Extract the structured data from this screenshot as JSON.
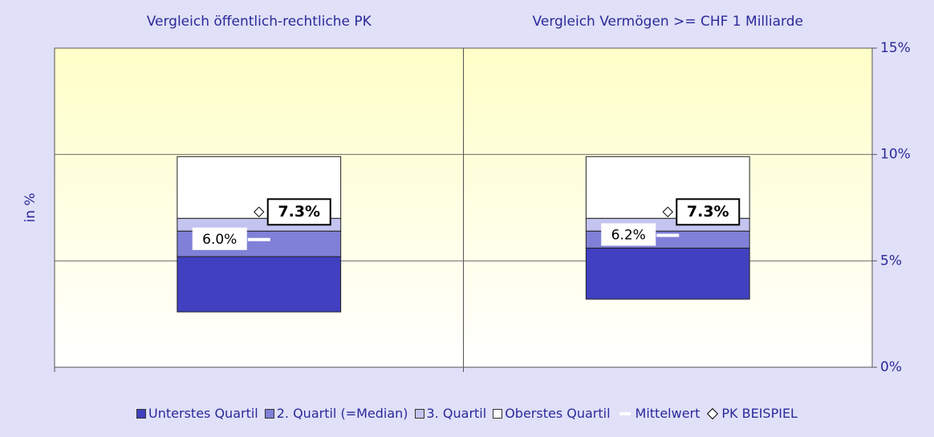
{
  "chart_data": {
    "type": "floating-stacked-bar",
    "categories": [
      "Vergleich öffentlich-rechtliche PK",
      "Vergleich Vermögen >= CHF 1 Milliarde"
    ],
    "ylabel": "in %",
    "ylim": [
      0,
      15
    ],
    "yticks": [
      {
        "value": 0,
        "label": "0%"
      },
      {
        "value": 5,
        "label": "5%"
      },
      {
        "value": 10,
        "label": "10%"
      },
      {
        "value": 15,
        "label": "15%"
      }
    ],
    "grid": true,
    "base": [
      2.6,
      3.2
    ],
    "series": [
      {
        "name": "Unterstes Quartil",
        "color": "#4040c0",
        "values": [
          2.6,
          2.4
        ]
      },
      {
        "name": "2. Quartil (=Median)",
        "color": "#8080d8",
        "values": [
          1.2,
          0.8
        ]
      },
      {
        "name": "3. Quartil",
        "color": "#c4c4f0",
        "values": [
          0.6,
          0.6
        ]
      },
      {
        "name": "Oberstes Quartil",
        "color": "#ffffff",
        "values": [
          2.9,
          2.9
        ]
      }
    ],
    "mean": {
      "name": "Mittelwert",
      "color": "#ffffff",
      "values": [
        6.0,
        6.2
      ],
      "value_labels": [
        "6.0%",
        "6.2%"
      ]
    },
    "pk": {
      "name": "PK BEISPIEL",
      "values": [
        7.3,
        7.3
      ],
      "value_labels": [
        "7.3%",
        "7.3%"
      ]
    }
  }
}
